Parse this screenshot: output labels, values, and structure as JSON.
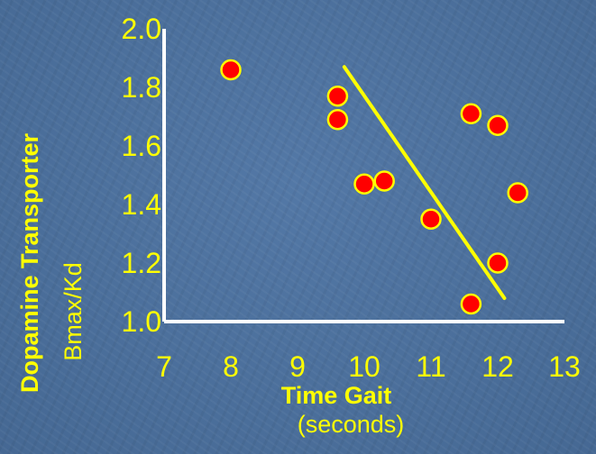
{
  "chart_data": {
    "type": "scatter",
    "xlabel": "Time Gait",
    "xlabel_sub": "(seconds)",
    "ylabel": "Dopamine Transporter",
    "ylabel_sub": "Bmax/Kd",
    "xlim": [
      7,
      13
    ],
    "ylim": [
      1.0,
      2.0
    ],
    "x_ticks": [
      "7",
      "8",
      "9",
      "10",
      "11",
      "12",
      "13"
    ],
    "y_ticks": [
      "1.0",
      "1.2",
      "1.4",
      "1.6",
      "1.8",
      "2.0"
    ],
    "points": [
      {
        "x": 8.0,
        "y": 1.86
      },
      {
        "x": 9.6,
        "y": 1.77
      },
      {
        "x": 9.6,
        "y": 1.69
      },
      {
        "x": 10.0,
        "y": 1.47
      },
      {
        "x": 10.3,
        "y": 1.48
      },
      {
        "x": 11.0,
        "y": 1.35
      },
      {
        "x": 11.6,
        "y": 1.71
      },
      {
        "x": 12.0,
        "y": 1.67
      },
      {
        "x": 12.3,
        "y": 1.44
      },
      {
        "x": 12.0,
        "y": 1.2
      },
      {
        "x": 11.6,
        "y": 1.06
      }
    ],
    "trendline": {
      "x": [
        9.7,
        12.1
      ],
      "y": [
        1.87,
        1.08
      ]
    },
    "colors": {
      "point_fill": "#ff0000",
      "point_stroke": "#ffff00",
      "trendline": "#ffff00",
      "axes": "#ffffff",
      "text": "#ffff00"
    }
  }
}
